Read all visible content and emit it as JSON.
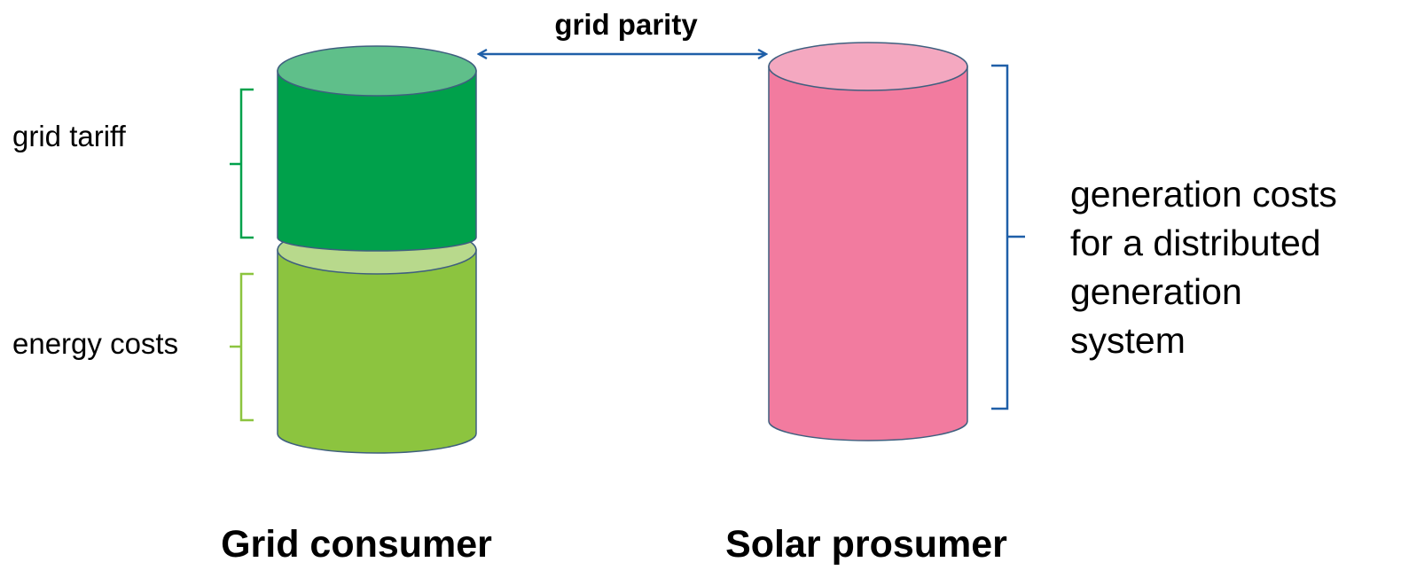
{
  "labels": {
    "grid_tariff": "grid tariff",
    "energy_costs": "energy costs",
    "grid_parity": "grid parity",
    "generation_costs": [
      "generation costs",
      "for a distributed",
      "generation",
      "system"
    ],
    "grid_consumer": "Grid consumer",
    "solar_prosumer": "Solar prosumer"
  },
  "colors": {
    "tariff_body": "#00a14b",
    "tariff_top": "#5fbf8a",
    "energy_body": "#8cc43f",
    "energy_top": "#b8d98c",
    "solar_body": "#f27b9f",
    "solar_top": "#f4a8c0",
    "cylinder_outline": "#3f5f7f",
    "tariff_bracket": "#00a14b",
    "energy_bracket": "#8cc43f",
    "parity_arrow": "#1f5fa8"
  }
}
